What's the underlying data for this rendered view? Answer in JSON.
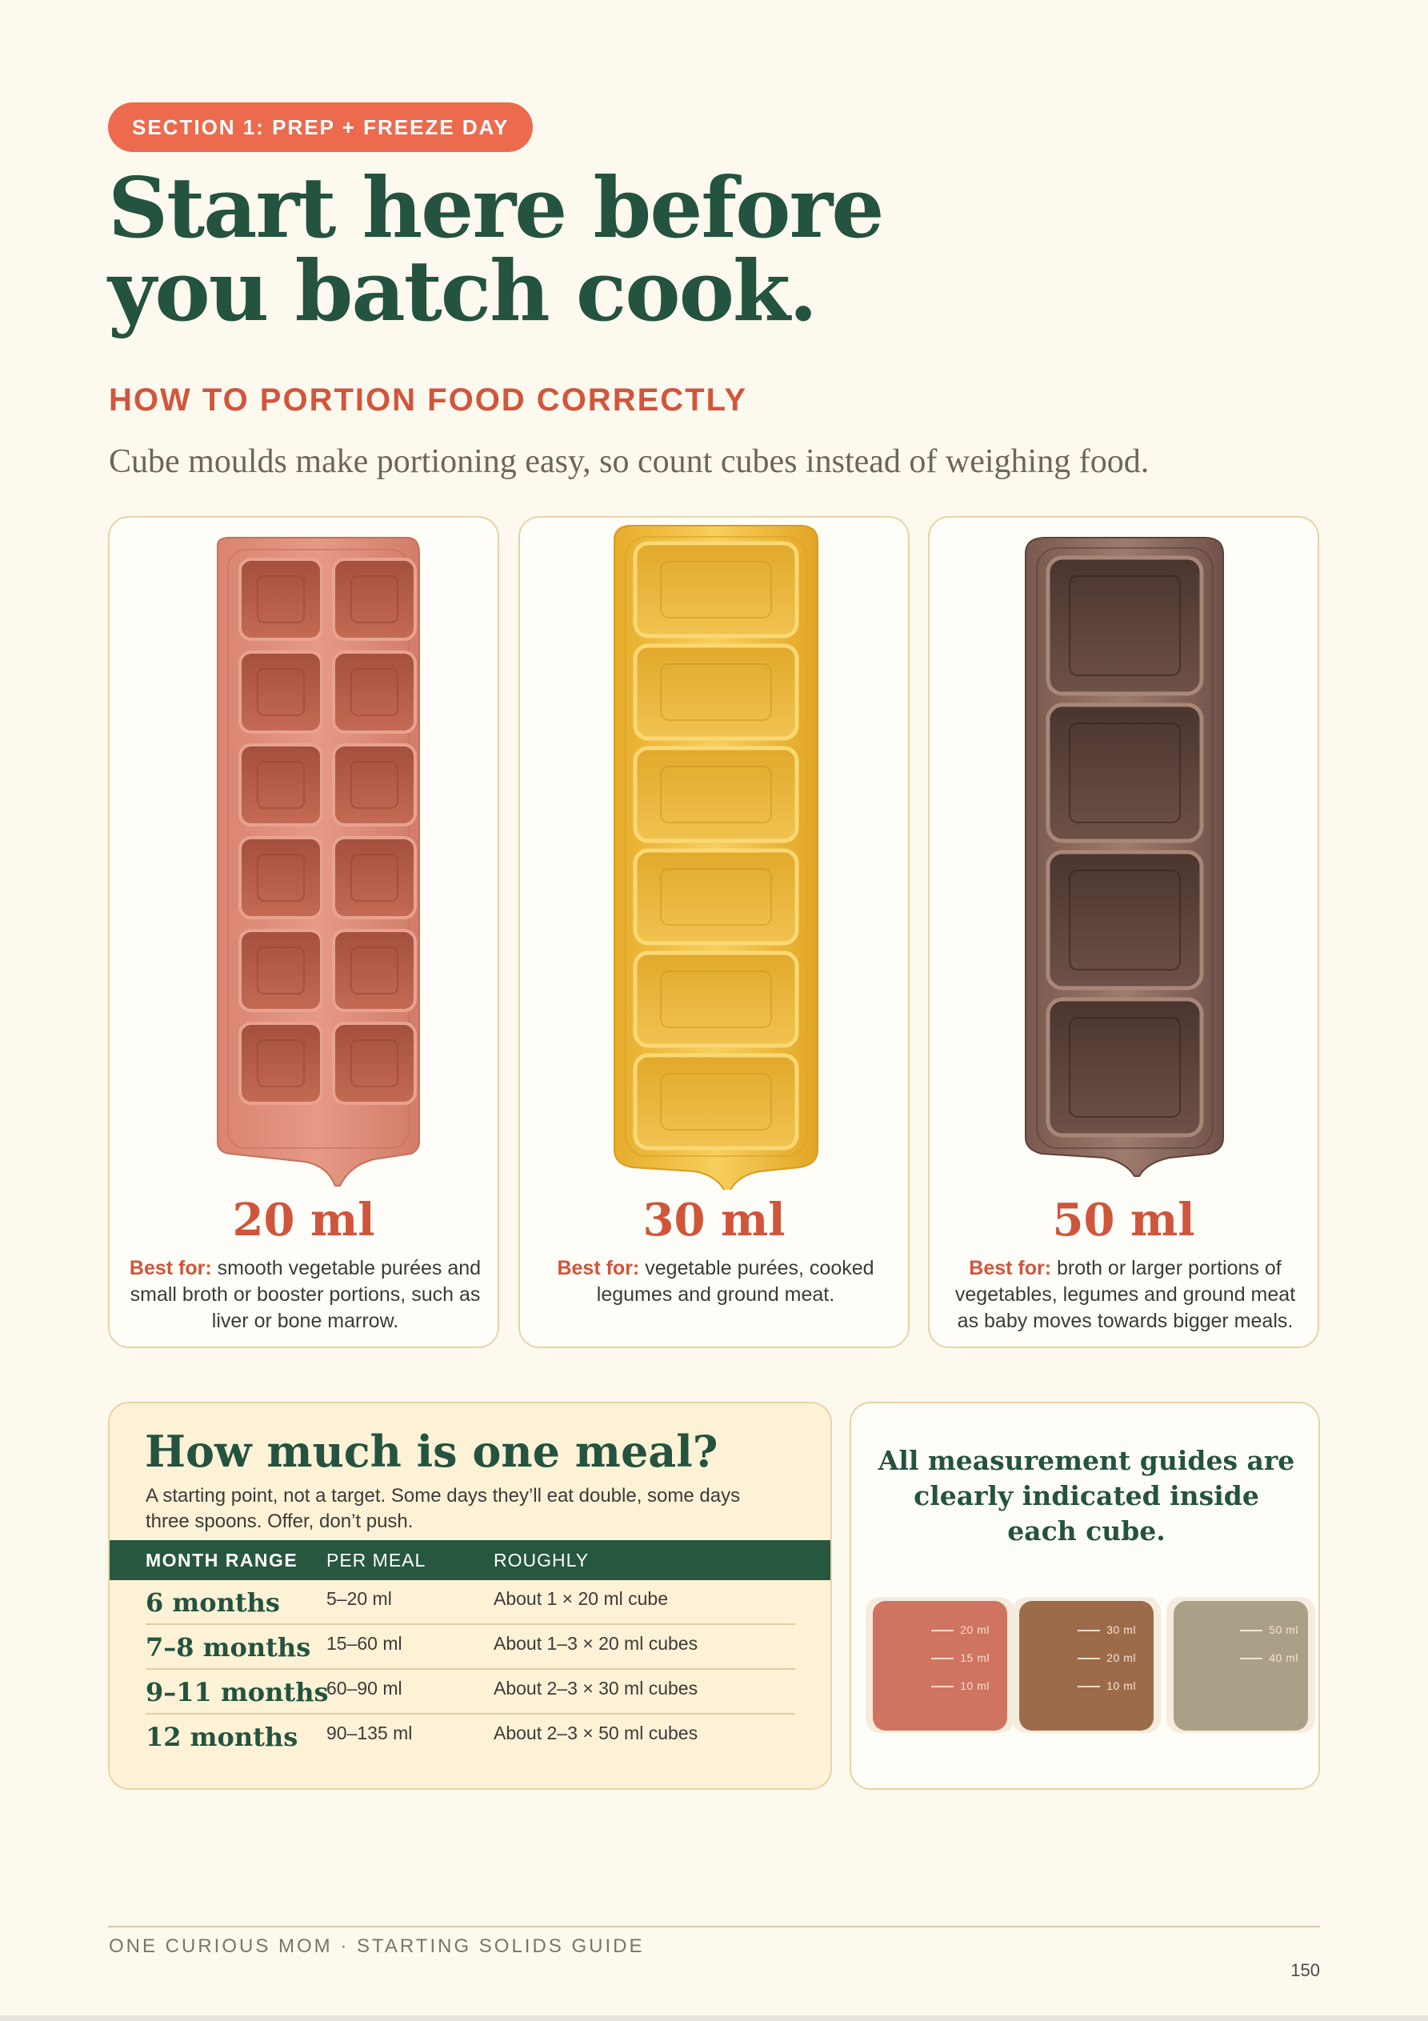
{
  "section_label": "SECTION 1: PREP + FREEZE DAY",
  "hero": {
    "line1": "Start here before",
    "line2": "you batch cook."
  },
  "subheading": "HOW TO PORTION FOOD CORRECTLY",
  "lead": "Cube moulds make portioning easy, so count cubes instead of weighing food.",
  "trays": [
    {
      "size": "20 ml",
      "best_label": "Best for:",
      "description": " smooth vegetable purées and small broth or booster portions, such as liver or bone marrow.",
      "color": "#d98a73"
    },
    {
      "size": "30 ml",
      "best_label": "Best for:",
      "description": " vegetable purées, cooked legumes and ground meat.",
      "color": "#f2c04a"
    },
    {
      "size": "50 ml",
      "best_label": "Best for:",
      "description": " broth or larger portions of vegetables, legumes and ground meat as baby moves towards bigger meals.",
      "color": "#7f5f55"
    }
  ],
  "meal": {
    "title": "How much is one meal?",
    "subtitle": "A starting point, not a target. Some days they’ll eat double, some days three spoons. Offer, don’t push.",
    "headers": {
      "month": "MONTH RANGE",
      "per_meal": "PER MEAL",
      "roughly": "ROUGHLY"
    },
    "rows": [
      {
        "month": "6 months",
        "per_meal": "5–20 ml",
        "roughly": "About 1 × 20 ml cube"
      },
      {
        "month": "7–8 months",
        "per_meal": "15–60 ml",
        "roughly": "About 1–3 × 20 ml cubes"
      },
      {
        "month": "9–11 months",
        "per_meal": "60–90 ml",
        "roughly": "About 2–3 × 30 ml cubes"
      },
      {
        "month": "12 months",
        "per_meal": "90–135 ml",
        "roughly": "About 2–3 × 50 ml cubes"
      }
    ]
  },
  "guide": {
    "text": "All measurement guides are clearly indicated inside each cube.",
    "cups": [
      {
        "marks": [
          "20 ml",
          "15 ml",
          "10 ml"
        ]
      },
      {
        "marks": [
          "30 ml",
          "20 ml",
          "10 ml"
        ]
      },
      {
        "marks": [
          "50 ml",
          "40 ml"
        ]
      }
    ]
  },
  "footer": {
    "brand": "ONE CURIOUS MOM · STARTING SOLIDS GUIDE",
    "page": "150"
  }
}
